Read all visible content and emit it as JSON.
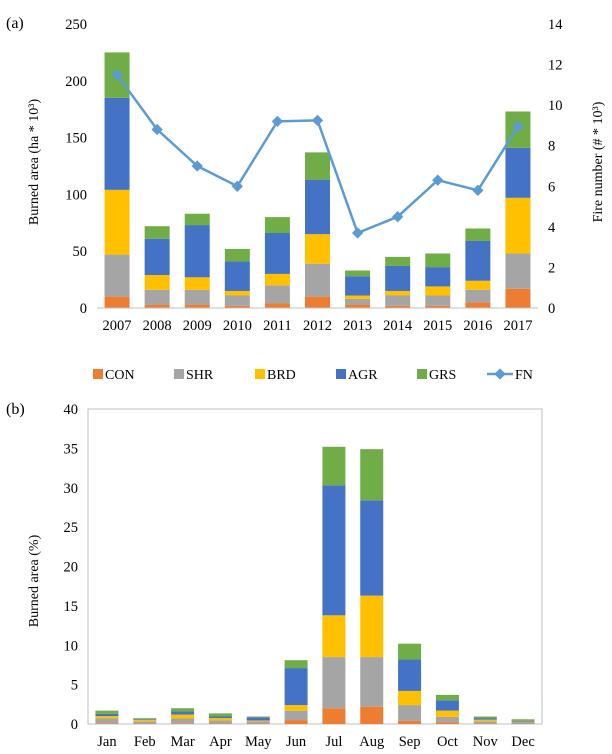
{
  "chart_data": [
    {
      "panel_label": "(a)",
      "type": "bar",
      "stacked": true,
      "categories": [
        "2007",
        "2008",
        "2009",
        "2010",
        "2011",
        "2012",
        "2013",
        "2014",
        "2015",
        "2016",
        "2017"
      ],
      "series": [
        {
          "name": "CON",
          "color": "#ED7D31",
          "values": [
            10,
            3,
            3,
            2,
            4,
            10,
            3,
            2,
            2,
            5,
            17
          ]
        },
        {
          "name": "SHR",
          "color": "#A5A5A5",
          "values": [
            37,
            13,
            13,
            9,
            16,
            29,
            5,
            9,
            9,
            11,
            31
          ]
        },
        {
          "name": "BRD",
          "color": "#FFC000",
          "values": [
            57,
            13,
            11,
            4,
            10,
            26,
            3,
            4,
            8,
            8,
            49
          ]
        },
        {
          "name": "AGR",
          "color": "#4472C4",
          "values": [
            81,
            32,
            46,
            26,
            36,
            48,
            17,
            22,
            17,
            35,
            44
          ]
        },
        {
          "name": "GRS",
          "color": "#70AD47",
          "values": [
            40,
            11,
            10,
            11,
            14,
            24,
            5,
            8,
            12,
            11,
            32
          ]
        }
      ],
      "line_series": {
        "name": "FN",
        "color": "#5B9BD5",
        "axis": "right",
        "values": [
          11.5,
          8.8,
          7.0,
          6.0,
          9.2,
          9.25,
          3.7,
          4.5,
          6.3,
          5.8,
          8.95
        ]
      },
      "ylabel": "Burned area (ha * 10³)",
      "y2label": "Fire number (# * 10³)",
      "ylim": [
        0,
        250
      ],
      "yticks": [
        0,
        50,
        100,
        150,
        200,
        250
      ],
      "y2lim": [
        0,
        14
      ],
      "y2ticks": [
        0,
        2,
        4,
        6,
        8,
        10,
        12,
        14
      ],
      "legend_labels": [
        "CON",
        "SHR",
        "BRD",
        "AGR",
        "GRS",
        "FN"
      ],
      "legend_position": "bottom",
      "grid": false
    },
    {
      "panel_label": "(b)",
      "type": "bar",
      "stacked": true,
      "categories": [
        "Jan",
        "Feb",
        "Mar",
        "Apr",
        "May",
        "Jun",
        "Jul",
        "Aug",
        "Sep",
        "Oct",
        "Nov",
        "Dec"
      ],
      "series": [
        {
          "name": "CON",
          "color": "#ED7D31",
          "values": [
            0.1,
            0.05,
            0.1,
            0.05,
            0.05,
            0.5,
            2.0,
            2.2,
            0.4,
            0.2,
            0.05,
            0.05
          ]
        },
        {
          "name": "SHR",
          "color": "#A5A5A5",
          "values": [
            0.6,
            0.3,
            0.6,
            0.4,
            0.3,
            1.2,
            6.5,
            6.3,
            2.0,
            0.7,
            0.3,
            0.2
          ]
        },
        {
          "name": "BRD",
          "color": "#FFC000",
          "values": [
            0.3,
            0.2,
            0.5,
            0.3,
            0.1,
            0.7,
            5.3,
            7.8,
            1.8,
            0.8,
            0.2,
            0.05
          ]
        },
        {
          "name": "AGR",
          "color": "#4472C4",
          "values": [
            0.3,
            0.1,
            0.4,
            0.2,
            0.4,
            4.7,
            16.5,
            12.1,
            4.0,
            1.3,
            0.2,
            0.1
          ]
        },
        {
          "name": "GRS",
          "color": "#70AD47",
          "values": [
            0.4,
            0.1,
            0.4,
            0.4,
            0.1,
            1.0,
            4.9,
            6.5,
            2.0,
            0.7,
            0.2,
            0.2
          ]
        }
      ],
      "ylabel": "Burned area (%)",
      "ylim": [
        0,
        40
      ],
      "yticks": [
        0,
        5,
        10,
        15,
        20,
        25,
        30,
        35,
        40
      ],
      "grid": false
    }
  ]
}
